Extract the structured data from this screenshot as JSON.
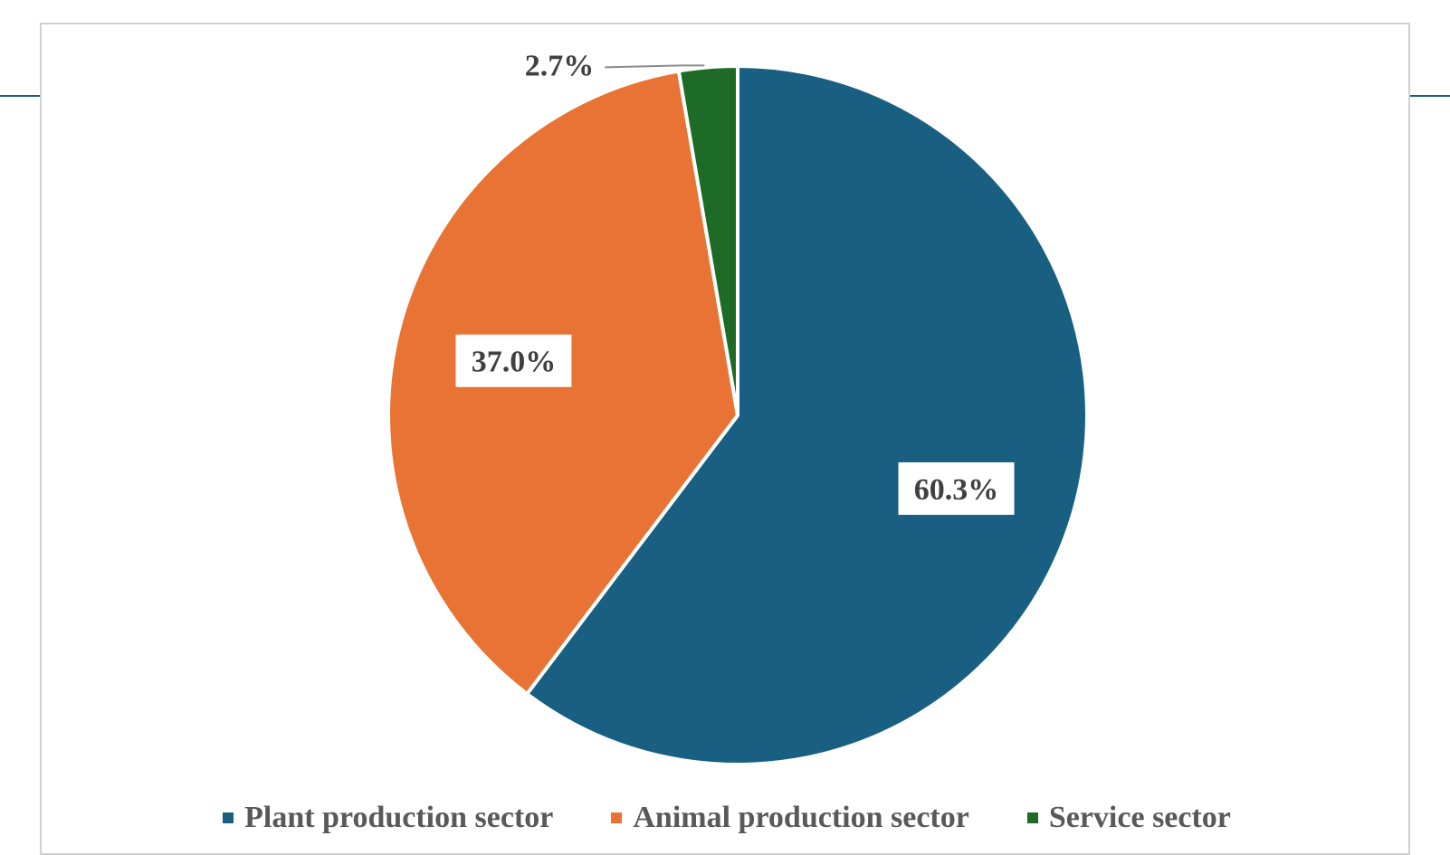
{
  "chart_data": {
    "type": "pie",
    "title": "",
    "categories": [
      "Plant production sector",
      "Animal production sector",
      "Service sector"
    ],
    "values": [
      60.3,
      37.0,
      2.7
    ],
    "labels": [
      "60.3%",
      "37.0%",
      "2.7%"
    ],
    "colors": [
      "#185f82",
      "#e87334",
      "#1d6b27"
    ],
    "legend_position": "bottom"
  }
}
